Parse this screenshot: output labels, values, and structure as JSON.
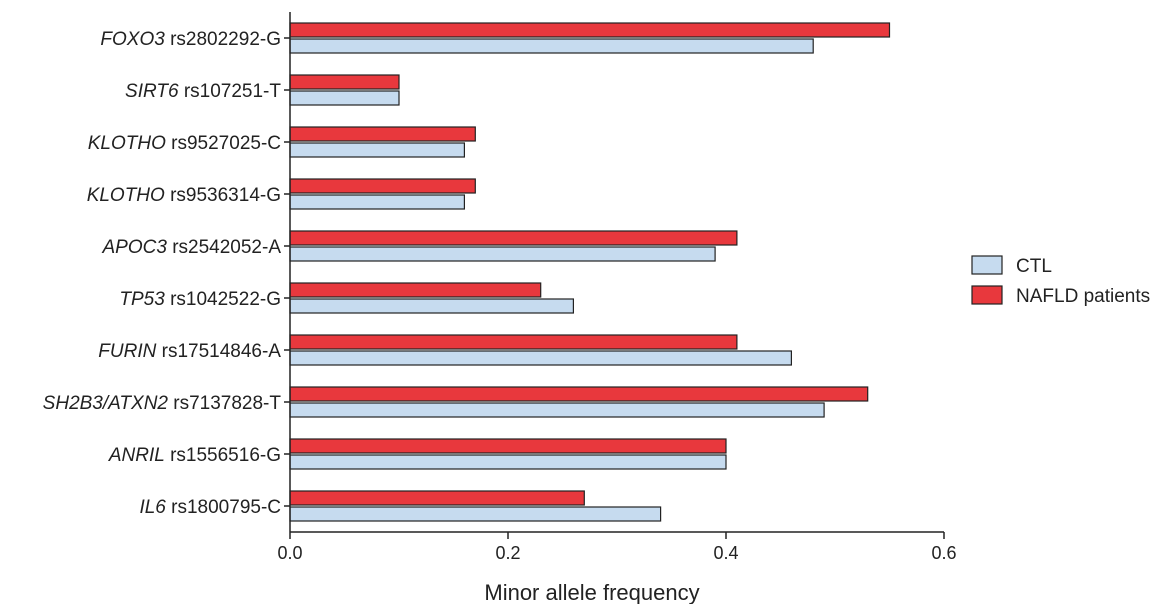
{
  "chart_data": {
    "type": "bar",
    "orientation": "horizontal",
    "title": "",
    "xlabel": "Minor allele frequency",
    "ylabel": "",
    "xlim": [
      0,
      0.6
    ],
    "xticks": [
      "0.0",
      "0.2",
      "0.4",
      "0.6"
    ],
    "xtick_values": [
      0,
      0.2,
      0.4,
      0.6
    ],
    "grid": false,
    "legend_position": "right",
    "categories": [
      {
        "gene": "FOXO3",
        "snp": " rs2802292-G"
      },
      {
        "gene": "SIRT6",
        "snp": " rs107251-T"
      },
      {
        "gene": "KLOTHO",
        "snp": " rs9527025-C"
      },
      {
        "gene": "KLOTHO",
        "snp": " rs9536314-G"
      },
      {
        "gene": "APOC3",
        "snp": " rs2542052-A"
      },
      {
        "gene": "TP53",
        "snp": " rs1042522-G"
      },
      {
        "gene": "FURIN",
        "snp": " rs17514846-A"
      },
      {
        "gene": "SH2B3/ATXN2",
        "snp": " rs7137828-T"
      },
      {
        "gene": "ANRIL",
        "snp": " rs1556516-G"
      },
      {
        "gene": "IL6",
        "snp": " rs1800795-C"
      }
    ],
    "series": [
      {
        "name": "CTL",
        "color": "#c6dbef",
        "values": [
          0.48,
          0.1,
          0.16,
          0.16,
          0.39,
          0.26,
          0.46,
          0.49,
          0.4,
          0.34
        ]
      },
      {
        "name": "NAFLD patients",
        "color": "#e8383d",
        "values": [
          0.55,
          0.1,
          0.17,
          0.17,
          0.41,
          0.23,
          0.41,
          0.53,
          0.4,
          0.27
        ]
      }
    ]
  }
}
